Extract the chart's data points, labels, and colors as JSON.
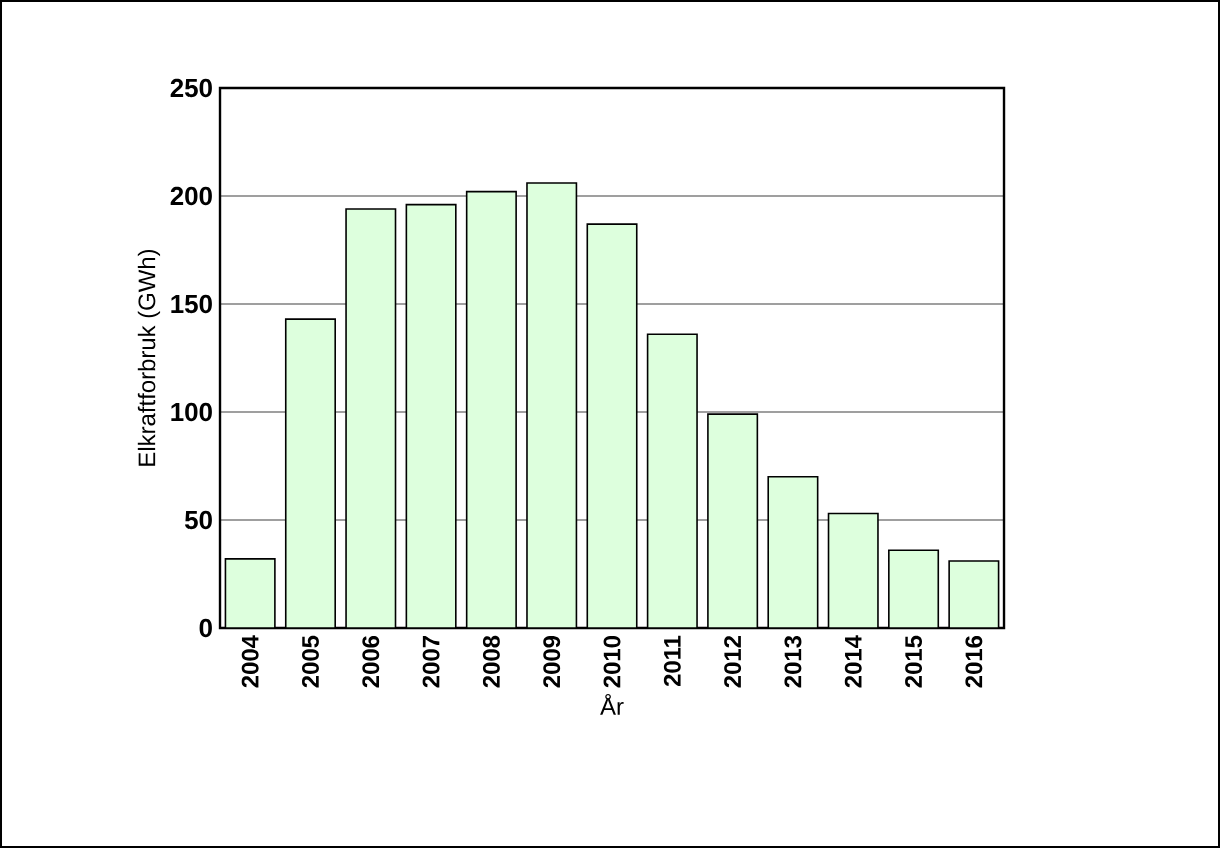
{
  "chart_data": {
    "type": "bar",
    "xlabel": "År",
    "ylabel": "Elkraftforbruk (GWh)",
    "categories": [
      "2004",
      "2005",
      "2006",
      "2007",
      "2008",
      "2009",
      "2010",
      "2011",
      "2012",
      "2013",
      "2014",
      "2015",
      "2016"
    ],
    "values": [
      32,
      143,
      194,
      196,
      202,
      206,
      187,
      136,
      99,
      70,
      53,
      36,
      31
    ],
    "color": "#ddffdd",
    "ylim": [
      0,
      250
    ],
    "yticks": [
      0,
      50,
      100,
      150,
      200,
      250
    ],
    "grid": "y"
  }
}
